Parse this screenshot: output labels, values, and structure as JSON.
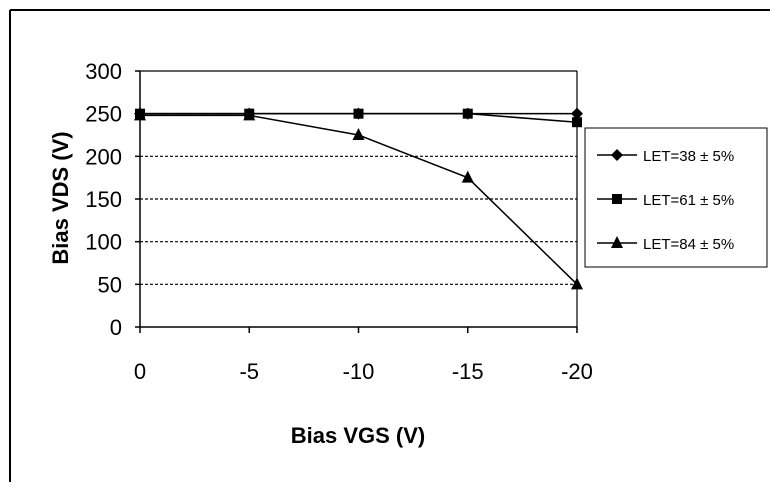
{
  "chart_data": {
    "type": "line",
    "title": "",
    "xlabel": "Bias VGS (V)",
    "ylabel": "Bias VDS (V)",
    "categories": [
      "0",
      "-5",
      "-10",
      "-15",
      "-20"
    ],
    "x": [
      0,
      -5,
      -10,
      -15,
      -20
    ],
    "ylim": [
      0,
      300
    ],
    "yticks": [
      "0",
      "50",
      "100",
      "150",
      "200",
      "250",
      "300"
    ],
    "grid": "horizontal dashed",
    "legend_position": "right",
    "series": [
      {
        "name": "LET=38 ± 5%",
        "marker": "diamond",
        "values": [
          250,
          250,
          250,
          250,
          250
        ]
      },
      {
        "name": "LET=61 ± 5%",
        "marker": "square",
        "values": [
          250,
          250,
          250,
          250,
          240
        ]
      },
      {
        "name": "LET=84 ± 5%",
        "marker": "triangle",
        "values": [
          248,
          248,
          225,
          175,
          50
        ]
      }
    ]
  }
}
